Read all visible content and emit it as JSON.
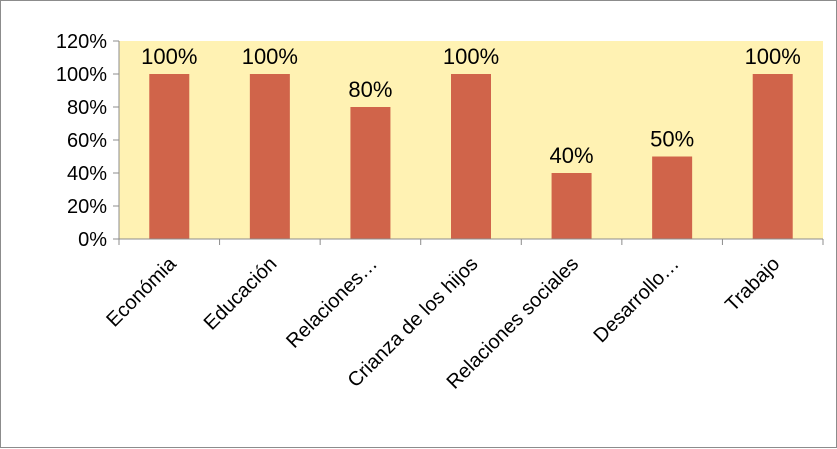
{
  "chart_data": {
    "type": "bar",
    "categories": [
      "Económia",
      "Educación",
      "Relaciones…",
      "Crianza de los hijos",
      "Relaciones sociales",
      "Desarrollo…",
      "Trabajo"
    ],
    "values": [
      100,
      100,
      80,
      100,
      40,
      50,
      100
    ],
    "data_labels": [
      "100%",
      "100%",
      "80%",
      "100%",
      "40%",
      "50%",
      "100%"
    ],
    "yticks": [
      "0%",
      "20%",
      "40%",
      "60%",
      "80%",
      "100%",
      "120%"
    ],
    "ylim": [
      0,
      120
    ],
    "grid": false,
    "legend": "none",
    "title": "",
    "xlabel": "",
    "ylabel": "",
    "colors": {
      "bar": "#D0644A",
      "plot_background": "#FFF2B3",
      "axis": "#8c8c8c"
    }
  }
}
